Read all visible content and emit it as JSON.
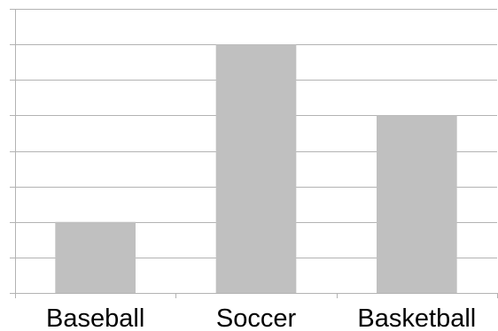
{
  "chart_data": {
    "type": "bar",
    "categories": [
      "Baseball",
      "Soccer",
      "Basketball"
    ],
    "values": [
      2,
      7,
      5
    ],
    "title": "",
    "xlabel": "",
    "ylabel": "",
    "ylim": [
      0,
      8
    ],
    "y_tick_step": 1,
    "y_tick_labels_shown": false,
    "grid": true,
    "legend": "none",
    "colors": {
      "bar": "#c0c0c0",
      "grid": "#b3b3b3",
      "axis": "#b3b3b3"
    }
  }
}
